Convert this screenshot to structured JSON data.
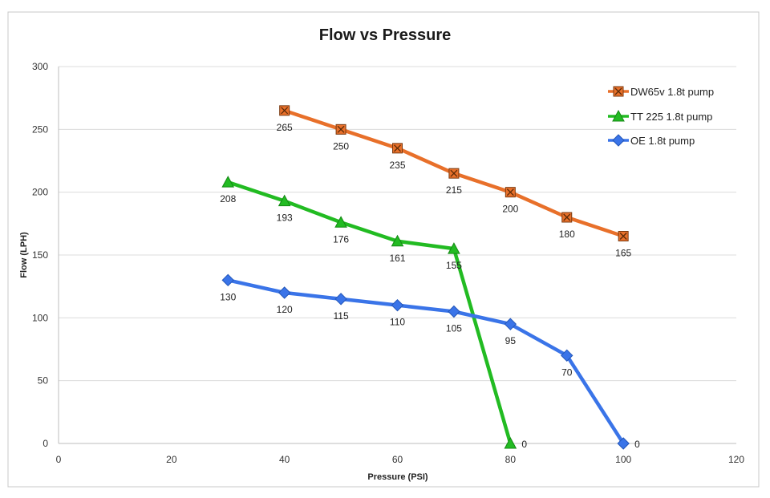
{
  "chart_data": {
    "type": "line",
    "title": "Flow vs Pressure",
    "xlabel": "Pressure (PSI)",
    "ylabel": "Flow (LPH)",
    "xlim": [
      0,
      120
    ],
    "ylim": [
      0,
      300
    ],
    "xticks": [
      0,
      20,
      40,
      60,
      80,
      100,
      120
    ],
    "yticks": [
      0,
      50,
      100,
      150,
      200,
      250,
      300
    ],
    "grid": "horizontal",
    "legend_position": "top-right",
    "series": [
      {
        "name": "DW65v 1.8t pump",
        "color": "#e8702a",
        "marker": "square-x",
        "x": [
          40,
          50,
          60,
          70,
          80,
          90,
          100
        ],
        "values": [
          265,
          250,
          235,
          215,
          200,
          180,
          165
        ],
        "labels": [
          "265",
          "250",
          "235",
          "215",
          "200",
          "180",
          "165"
        ]
      },
      {
        "name": "TT 225 1.8t pump",
        "color": "#22bb22",
        "marker": "triangle",
        "x": [
          30,
          40,
          50,
          60,
          70,
          80
        ],
        "values": [
          208,
          193,
          176,
          161,
          155,
          0
        ],
        "labels": [
          "208",
          "193",
          "176",
          "161",
          "155",
          "0"
        ]
      },
      {
        "name": "OE 1.8t pump",
        "color": "#3a74e8",
        "marker": "diamond",
        "x": [
          30,
          40,
          50,
          60,
          70,
          80,
          90,
          100
        ],
        "values": [
          130,
          120,
          115,
          110,
          105,
          95,
          70,
          0
        ],
        "labels": [
          "130",
          "120",
          "115",
          "110",
          "105",
          "95",
          "70",
          "0"
        ]
      }
    ]
  }
}
